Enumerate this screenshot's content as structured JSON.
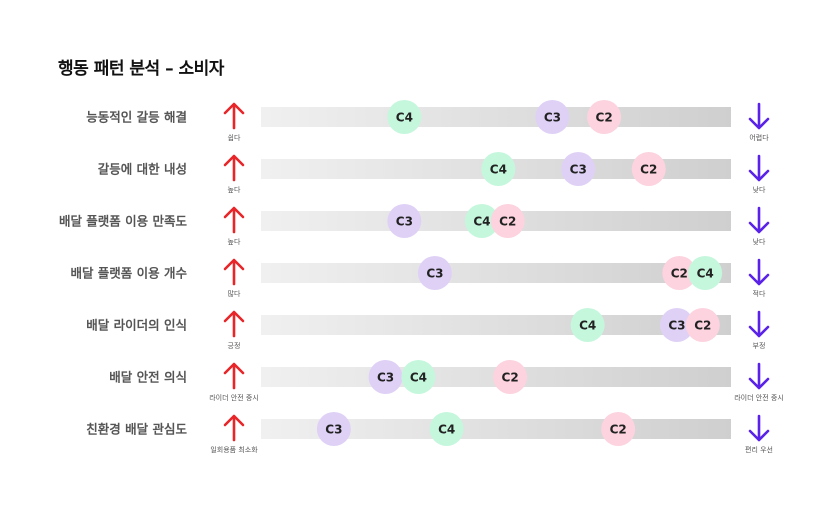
{
  "chart_data": {
    "type": "dot-strip",
    "title": "행동 패턴 분석 – 소비자",
    "scale": [
      0,
      100
    ],
    "colors": {
      "C2": "#fcd3df",
      "C3": "#dfd1f6",
      "C4": "#c5f7dd",
      "arrow_up": "#e8262a",
      "arrow_down": "#5a22e8",
      "bar_start": "#f0f0f0",
      "bar_end": "#cfcfcf"
    },
    "rows": [
      {
        "label": "능동적인 갈등 해결",
        "left": "쉽다",
        "right": "어렵다",
        "points": [
          {
            "name": "C4",
            "value": 30.5
          },
          {
            "name": "C3",
            "value": 62.0
          },
          {
            "name": "C2",
            "value": 73.0
          }
        ]
      },
      {
        "label": "갈등에 대한 내성",
        "left": "높다",
        "right": "낮다",
        "points": [
          {
            "name": "C4",
            "value": 50.5
          },
          {
            "name": "C3",
            "value": 67.5
          },
          {
            "name": "C2",
            "value": 82.5
          }
        ]
      },
      {
        "label": "배달 플랫폼 이용 만족도",
        "left": "높다",
        "right": "낮다",
        "points": [
          {
            "name": "C3",
            "value": 30.5
          },
          {
            "name": "C4",
            "value": 47.0
          },
          {
            "name": "C2",
            "value": 52.5
          }
        ]
      },
      {
        "label": "배달 플랫폼 이용 개수",
        "left": "많다",
        "right": "적다",
        "points": [
          {
            "name": "C3",
            "value": 37.0
          },
          {
            "name": "C2",
            "value": 89.0
          },
          {
            "name": "C4",
            "value": 94.5
          }
        ]
      },
      {
        "label": "배달 라이더의 인식",
        "left": "긍정",
        "right": "부정",
        "points": [
          {
            "name": "C4",
            "value": 69.5
          },
          {
            "name": "C3",
            "value": 88.5
          },
          {
            "name": "C2",
            "value": 94.0
          }
        ]
      },
      {
        "label": "배달 안전 의식",
        "left": "라이더 안전 중시",
        "right": "라이더 안전 중시",
        "points": [
          {
            "name": "C3",
            "value": 26.5
          },
          {
            "name": "C4",
            "value": 33.5
          },
          {
            "name": "C2",
            "value": 53.0
          }
        ]
      },
      {
        "label": "친환경 배달 관심도",
        "left": "일회용품 최소화",
        "right": "편리 우선",
        "points": [
          {
            "name": "C3",
            "value": 15.5
          },
          {
            "name": "C4",
            "value": 39.5
          },
          {
            "name": "C2",
            "value": 76.0
          }
        ]
      }
    ]
  }
}
